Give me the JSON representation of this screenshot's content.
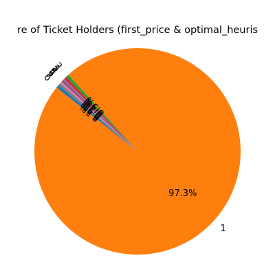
{
  "chart_data": {
    "type": "pie",
    "title": "re of Ticket Holders (first_price & optimal_heuris",
    "start_angle_deg": 140,
    "direction": "counterclockwise",
    "slices": [
      {
        "label": "0",
        "value": 0.5,
        "pct_label": "0.5%",
        "color": "#1f77b4"
      },
      {
        "label": "1",
        "value": 97.3,
        "pct_label": "97.3%",
        "color": "#ff7f0e"
      },
      {
        "label": "2",
        "value": 0.5,
        "pct_label": "0.5%",
        "color": "#2ca02c"
      },
      {
        "label": "3",
        "value": 0.4,
        "pct_label": "0.4%",
        "color": "#d62728"
      },
      {
        "label": "4",
        "value": 0.3,
        "pct_label": "0.3%",
        "color": "#9467bd"
      },
      {
        "label": "5",
        "value": 0.3,
        "pct_label": "0.3%",
        "color": "#8c564b"
      },
      {
        "label": "6",
        "value": 0.3,
        "pct_label": "0.3%",
        "color": "#e377c2"
      },
      {
        "label": "7",
        "value": 0.4,
        "pct_label": "0.4%",
        "color": "#7f7f7f"
      }
    ]
  }
}
